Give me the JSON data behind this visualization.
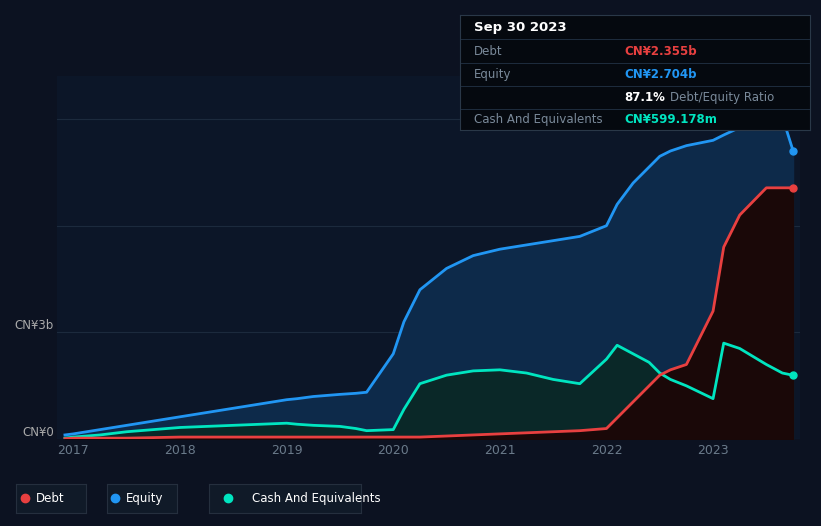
{
  "background_color": "#0c1221",
  "plot_bg_color": "#0c1628",
  "title_box_bg": "#080e18",
  "title_box_bg2": "#0a1020",
  "ylabel_top": "CN¥3b",
  "ylabel_bot": "CN¥0",
  "years": [
    2017,
    2018,
    2019,
    2020,
    2021,
    2022,
    2023
  ],
  "debt_color": "#e84040",
  "equity_color": "#2196f3",
  "cash_color": "#00e5c0",
  "equity_fill": "#0d2a4a",
  "cash_fill": "#0a2828",
  "debt_fill": "#1a0808",
  "grid_color": "#1e2d40",
  "tick_color": "#6a7a8a",
  "title_box": {
    "date": "Sep 30 2023",
    "debt_label": "Debt",
    "debt_value": "CN¥2.355b",
    "equity_label": "Equity",
    "equity_value": "CN¥2.704b",
    "ratio_value": "87.1%",
    "ratio_label": "Debt/Equity Ratio",
    "cash_label": "Cash And Equivalents",
    "cash_value": "CN¥599.178m"
  },
  "time": [
    2016.92,
    2017.0,
    2017.25,
    2017.5,
    2017.75,
    2018.0,
    2018.25,
    2018.5,
    2018.75,
    2019.0,
    2019.1,
    2019.25,
    2019.5,
    2019.65,
    2019.75,
    2020.0,
    2020.1,
    2020.25,
    2020.5,
    2020.75,
    2021.0,
    2021.25,
    2021.5,
    2021.75,
    2022.0,
    2022.1,
    2022.25,
    2022.4,
    2022.5,
    2022.6,
    2022.75,
    2023.0,
    2023.1,
    2023.25,
    2023.5,
    2023.65,
    2023.75
  ],
  "equity": [
    0.04,
    0.05,
    0.09,
    0.13,
    0.17,
    0.21,
    0.25,
    0.29,
    0.33,
    0.37,
    0.38,
    0.4,
    0.42,
    0.43,
    0.44,
    0.8,
    1.1,
    1.4,
    1.6,
    1.72,
    1.78,
    1.82,
    1.86,
    1.9,
    2.0,
    2.2,
    2.4,
    2.55,
    2.65,
    2.7,
    2.75,
    2.8,
    2.85,
    2.92,
    2.98,
    3.02,
    2.704
  ],
  "cash": [
    0.01,
    0.02,
    0.04,
    0.07,
    0.09,
    0.11,
    0.12,
    0.13,
    0.14,
    0.15,
    0.14,
    0.13,
    0.12,
    0.1,
    0.08,
    0.09,
    0.28,
    0.52,
    0.6,
    0.64,
    0.65,
    0.62,
    0.56,
    0.52,
    0.75,
    0.88,
    0.8,
    0.72,
    0.62,
    0.56,
    0.5,
    0.38,
    0.9,
    0.85,
    0.7,
    0.62,
    0.599
  ],
  "debt": [
    0.005,
    0.01,
    0.01,
    0.01,
    0.015,
    0.02,
    0.02,
    0.02,
    0.02,
    0.02,
    0.02,
    0.02,
    0.02,
    0.02,
    0.02,
    0.02,
    0.02,
    0.02,
    0.03,
    0.04,
    0.05,
    0.06,
    0.07,
    0.08,
    0.1,
    0.2,
    0.35,
    0.5,
    0.6,
    0.65,
    0.7,
    1.2,
    1.8,
    2.1,
    2.355,
    2.355,
    2.355
  ],
  "xlim": [
    2016.85,
    2023.82
  ],
  "ylim": [
    0,
    3.4
  ]
}
